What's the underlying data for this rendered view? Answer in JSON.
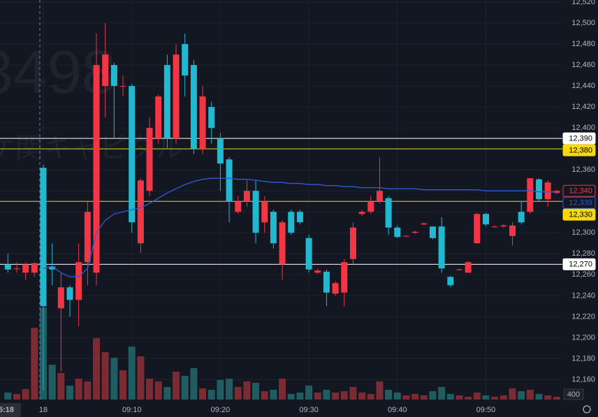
{
  "chart_data": {
    "type": "candlestick",
    "watermark": [
      "3498",
      "ケ関キャピタル"
    ],
    "categories": [
      null,
      null,
      null,
      null,
      "18",
      null,
      null,
      null,
      null,
      null,
      null,
      null,
      null,
      null,
      "09:10",
      null,
      null,
      null,
      null,
      null,
      null,
      null,
      null,
      null,
      "09:20",
      null,
      null,
      null,
      null,
      null,
      null,
      null,
      null,
      null,
      "09:30",
      null,
      null,
      null,
      null,
      null,
      null,
      null,
      null,
      null,
      "09:40",
      null,
      null,
      null,
      null,
      null,
      null,
      null,
      null,
      null,
      "09:50",
      null,
      null,
      null,
      null,
      null,
      null,
      null,
      null
    ],
    "open": [
      12270,
      12266,
      12262,
      12262,
      12362,
      12268,
      12228,
      12248,
      12236,
      12272,
      12262,
      12440,
      12460,
      12440,
      12440,
      12290,
      12340,
      12390,
      12460,
      12390,
      12480,
      12460,
      12380,
      12420,
      12390,
      12370,
      12320,
      12330,
      12340,
      12310,
      12320,
      12270,
      12320,
      12320,
      12295,
      12262,
      12263,
      12242,
      12243,
      12275,
      12318,
      12320,
      12330,
      12333,
      12305,
      12297,
      12300,
      12308,
      12306,
      12306,
      12258,
      12265,
      12262,
      12290,
      12318,
      12306,
      12306,
      12297,
      12320,
      12320,
      12351,
      12332,
      12338
    ],
    "high": [
      12280,
      12272,
      12272,
      12272,
      12365,
      12290,
      12262,
      12250,
      12290,
      12330,
      12490,
      12500,
      12462,
      12450,
      12442,
      12352,
      12410,
      12432,
      12470,
      12480,
      12490,
      12465,
      12440,
      12425,
      12395,
      12372,
      12335,
      12350,
      12350,
      12335,
      12322,
      12312,
      12322,
      12322,
      12298,
      12266,
      12265,
      12254,
      12275,
      12310,
      12322,
      12335,
      12372,
      12335,
      12307,
      12298,
      12302,
      12310,
      12306,
      12315,
      12259,
      12266,
      12273,
      12319,
      12319,
      12307,
      12308,
      12310,
      12330,
      12352,
      12352,
      12350,
      12341
    ],
    "low": [
      12262,
      12262,
      12255,
      12258,
      12150,
      12250,
      12168,
      12220,
      12211,
      12250,
      12250,
      12410,
      12390,
      12430,
      12300,
      12281,
      12335,
      12385,
      12380,
      12385,
      12430,
      12375,
      12375,
      12385,
      12340,
      12310,
      12318,
      12325,
      12290,
      12300,
      12285,
      12255,
      12298,
      12308,
      12262,
      12261,
      12230,
      12240,
      12230,
      12270,
      12316,
      12318,
      12328,
      12298,
      12295,
      12296,
      12299,
      12307,
      12294,
      12262,
      12248,
      12264,
      12262,
      12290,
      12306,
      12305,
      12305,
      12288,
      12308,
      12318,
      12330,
      12325,
      12337
    ],
    "close": [
      12265,
      12266,
      12270,
      12271,
      12230,
      12265,
      12248,
      12236,
      12272,
      12320,
      12460,
      12470,
      12440,
      12440,
      12310,
      12350,
      12400,
      12430,
      12390,
      12470,
      12450,
      12380,
      12430,
      12400,
      12366,
      12330,
      12330,
      12340,
      12300,
      12330,
      12290,
      12310,
      12300,
      12310,
      12265,
      12264,
      12243,
      12252,
      12272,
      12305,
      12320,
      12330,
      12340,
      12305,
      12296,
      12297,
      12301,
      12309,
      12295,
      12266,
      12250,
      12265,
      12272,
      12318,
      12308,
      12306,
      12307,
      12307,
      12310,
      12352,
      12332,
      12348,
      12340
    ],
    "volume": [
      570,
      460,
      860,
      5870,
      7520,
      2850,
      2170,
      1140,
      1710,
      1480,
      5020,
      3880,
      3420,
      2390,
      4330,
      3530,
      1710,
      1480,
      1030,
      2280,
      1940,
      2570,
      910,
      800,
      1600,
      1710,
      1030,
      1480,
      1370,
      680,
      800,
      1710,
      460,
      570,
      1140,
      570,
      800,
      570,
      680,
      1030,
      570,
      460,
      1480,
      800,
      570,
      340,
      460,
      340,
      680,
      1030,
      460,
      340,
      230,
      570,
      340,
      230,
      340,
      910,
      680,
      800,
      460,
      340,
      230
    ],
    "vwap": [
      null,
      null,
      null,
      null,
      12266,
      12268,
      12262,
      12258,
      12258,
      12266,
      12300,
      12312,
      12318,
      12320,
      12322,
      12324,
      12328,
      12333,
      12338,
      12342,
      12346,
      12349,
      12351,
      12352,
      12352,
      12352,
      12351,
      12351,
      12350,
      12349,
      12348,
      12348,
      12347,
      12347,
      12346,
      12346,
      12345,
      12345,
      12344,
      12344,
      12343,
      12343,
      12343,
      12342,
      12342,
      12342,
      12342,
      12341,
      12341,
      12341,
      12341,
      12341,
      12341,
      12341,
      12340,
      12340,
      12340,
      12340,
      12340,
      12340,
      12339,
      12339,
      12339
    ],
    "up_color": "#f23645",
    "down_color": "#22b8cf",
    "up_volume_color": "#7c2b35",
    "down_volume_color": "#1f5d62",
    "vwap_color": "#2f5bd8",
    "ylim": [
      12139,
      12522
    ],
    "yticks": [
      {
        "value": 12160,
        "label": "12,160"
      },
      {
        "value": 12180,
        "label": "12,180"
      },
      {
        "value": 12200,
        "label": "12,200"
      },
      {
        "value": 12220,
        "label": "12,220"
      },
      {
        "value": 12240,
        "label": "12,240"
      },
      {
        "value": 12260,
        "label": "12,260"
      },
      {
        "value": 12280,
        "label": "12,280"
      },
      {
        "value": 12300,
        "label": "12,300"
      },
      {
        "value": 12320,
        "label": "12,320"
      },
      {
        "value": 12340,
        "label": "12,340"
      },
      {
        "value": 12360,
        "label": "12,360"
      },
      {
        "value": 12380,
        "label": "12,380"
      },
      {
        "value": 12400,
        "label": "12,400"
      },
      {
        "value": 12420,
        "label": "12,420"
      },
      {
        "value": 12440,
        "label": "12,440"
      },
      {
        "value": 12460,
        "label": "12,460"
      },
      {
        "value": 12480,
        "label": "12,480"
      },
      {
        "value": 12500,
        "label": "12,500"
      },
      {
        "value": 12520,
        "label": "12,520"
      }
    ],
    "volume_ylim": [
      0,
      8000
    ],
    "volume_ticks": [
      400
    ],
    "grid": true,
    "levels": [
      {
        "value": 12390,
        "label": "12,390",
        "color": "#ffffff"
      },
      {
        "value": 12380,
        "label": "12,380",
        "color": "#f5d90a"
      },
      {
        "value": 12330,
        "label": "12,330",
        "color": "#f5d90a"
      },
      {
        "value": 12270,
        "label": "12,270",
        "color": "#ffffff"
      }
    ],
    "price_tags": [
      {
        "value": 12340,
        "label": "12,340",
        "color": "#f23645"
      },
      {
        "value": 12339,
        "label": "12,339",
        "color": "#2f5bd8"
      }
    ],
    "crosshair_label": "5:18"
  }
}
